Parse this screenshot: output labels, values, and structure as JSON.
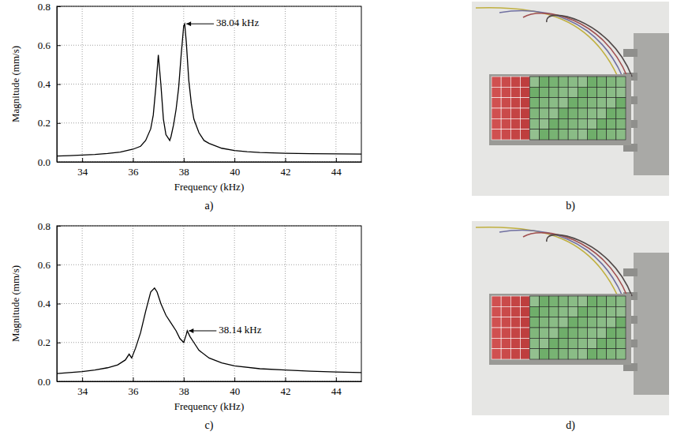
{
  "chart_data": [
    {
      "type": "line",
      "caption": "a)",
      "color": "#000000",
      "grid": true,
      "x_label": "Frequency (kHz)",
      "y_label": "Magnitude (mm/s)",
      "xlim": [
        33,
        45
      ],
      "xticks": [
        34,
        36,
        38,
        40,
        42,
        44
      ],
      "ylim": [
        0,
        0.8
      ],
      "yticks": [
        {
          "value": 0,
          "label": "0.0"
        },
        0.2,
        0.4,
        0.6,
        0.8
      ],
      "x": [
        33,
        33.5,
        34,
        34.5,
        35,
        35.5,
        36,
        36.3,
        36.5,
        36.7,
        36.8,
        36.9,
        37.0,
        37.1,
        37.2,
        37.3,
        37.4,
        37.45,
        37.5,
        37.6,
        37.7,
        37.8,
        37.9,
        38.0,
        38.04,
        38.1,
        38.2,
        38.3,
        38.4,
        38.6,
        38.8,
        39,
        39.5,
        40,
        40.5,
        41,
        42,
        43,
        44,
        45
      ],
      "values": [
        0.03,
        0.032,
        0.035,
        0.038,
        0.043,
        0.05,
        0.065,
        0.08,
        0.11,
        0.17,
        0.24,
        0.38,
        0.55,
        0.4,
        0.22,
        0.14,
        0.12,
        0.11,
        0.13,
        0.19,
        0.27,
        0.38,
        0.55,
        0.7,
        0.71,
        0.62,
        0.42,
        0.3,
        0.22,
        0.15,
        0.11,
        0.095,
        0.07,
        0.058,
        0.052,
        0.048,
        0.044,
        0.042,
        0.041,
        0.04
      ],
      "annotations": [
        {
          "text": "38.04 kHz",
          "x": 38.04,
          "y": 0.71
        }
      ]
    },
    {
      "type": "line",
      "caption": "c)",
      "color": "#000000",
      "grid": true,
      "x_label": "Frequency (kHz)",
      "y_label": "Magnitude (mm/s)",
      "xlim": [
        33,
        45
      ],
      "xticks": [
        34,
        36,
        38,
        40,
        42,
        44
      ],
      "ylim": [
        0,
        0.8
      ],
      "yticks": [
        {
          "value": 0,
          "label": "0.0"
        },
        0.2,
        0.4,
        0.6,
        0.8
      ],
      "x": [
        33,
        33.5,
        34,
        34.5,
        35,
        35.4,
        35.7,
        35.85,
        35.95,
        36.1,
        36.3,
        36.5,
        36.7,
        36.85,
        36.95,
        37.1,
        37.3,
        37.5,
        37.7,
        37.85,
        38.0,
        38.1,
        38.14,
        38.25,
        38.4,
        38.6,
        39,
        39.5,
        40,
        41,
        42,
        43,
        44,
        45
      ],
      "values": [
        0.04,
        0.045,
        0.05,
        0.058,
        0.07,
        0.085,
        0.11,
        0.14,
        0.12,
        0.17,
        0.25,
        0.36,
        0.46,
        0.48,
        0.46,
        0.4,
        0.34,
        0.3,
        0.26,
        0.22,
        0.2,
        0.24,
        0.26,
        0.23,
        0.2,
        0.16,
        0.12,
        0.095,
        0.08,
        0.065,
        0.058,
        0.052,
        0.048,
        0.045
      ],
      "annotations": [
        {
          "text": "38.14 kHz",
          "x": 38.14,
          "y": 0.26
        }
      ]
    }
  ],
  "photos": [
    {
      "caption": "b)"
    },
    {
      "caption": "d)"
    }
  ]
}
